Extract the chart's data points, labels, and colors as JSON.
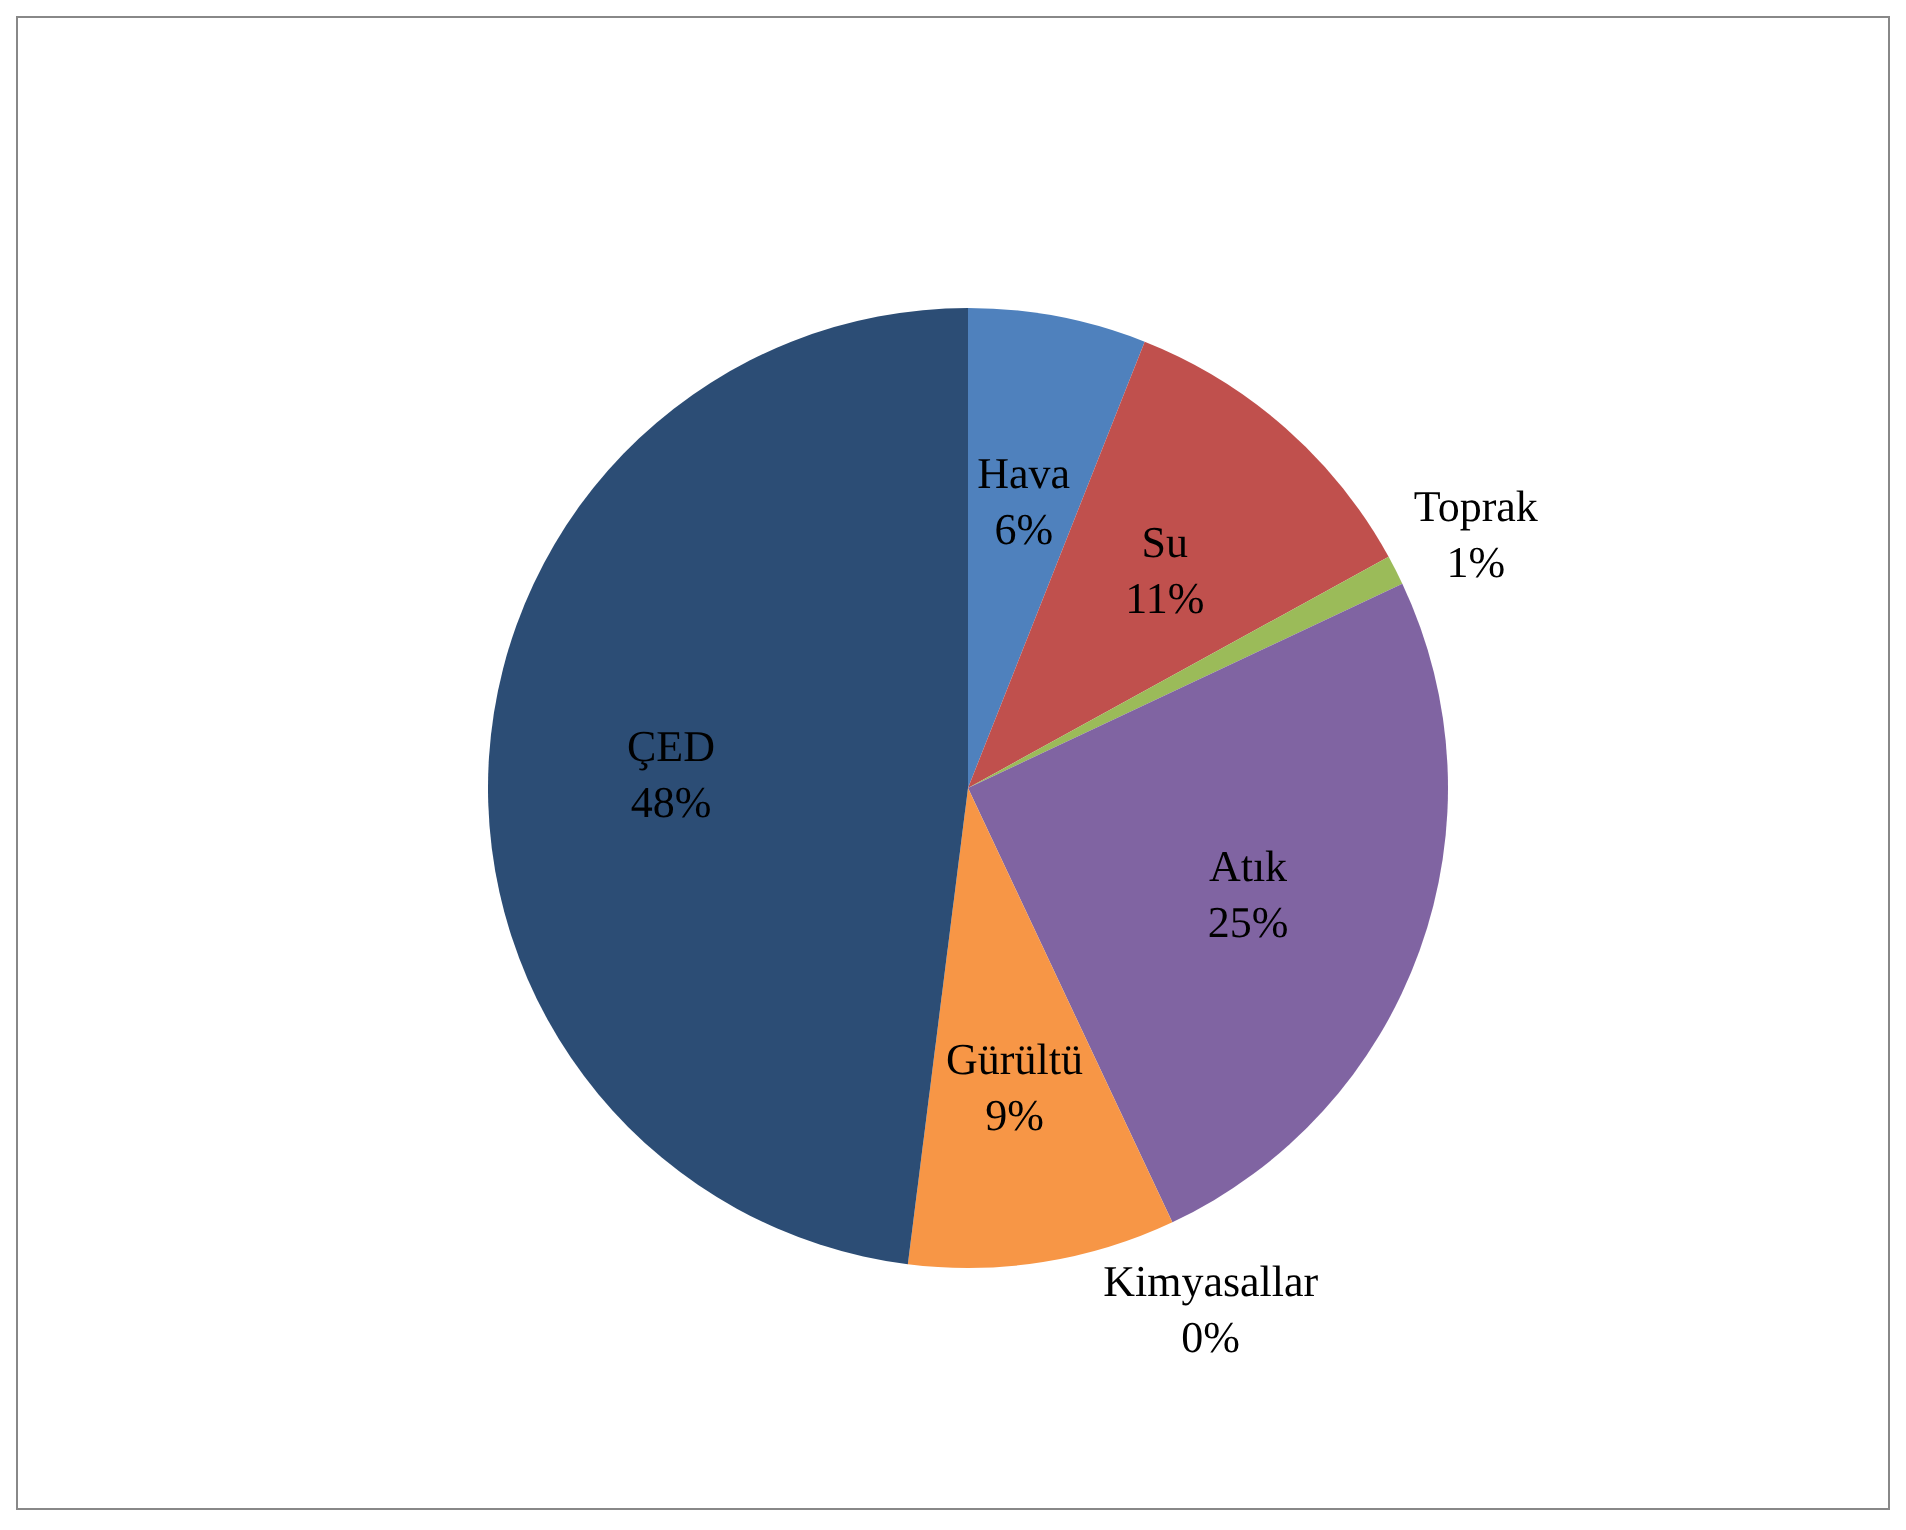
{
  "chart_data": {
    "type": "pie",
    "categories": [
      "Hava",
      "Su",
      "Toprak",
      "Atık",
      "Kimyasallar",
      "Gürültü",
      "ÇED"
    ],
    "values": [
      6,
      11,
      1,
      25,
      0,
      9,
      48
    ],
    "value_labels": [
      "6%",
      "11%",
      "1%",
      "25%",
      "0%",
      "9%",
      "48%"
    ],
    "colors": [
      "#4f81bd",
      "#c0504d",
      "#9bbb59",
      "#8064a2",
      "#4bacc6",
      "#f79646",
      "#2c4d75"
    ],
    "legend": false
  }
}
